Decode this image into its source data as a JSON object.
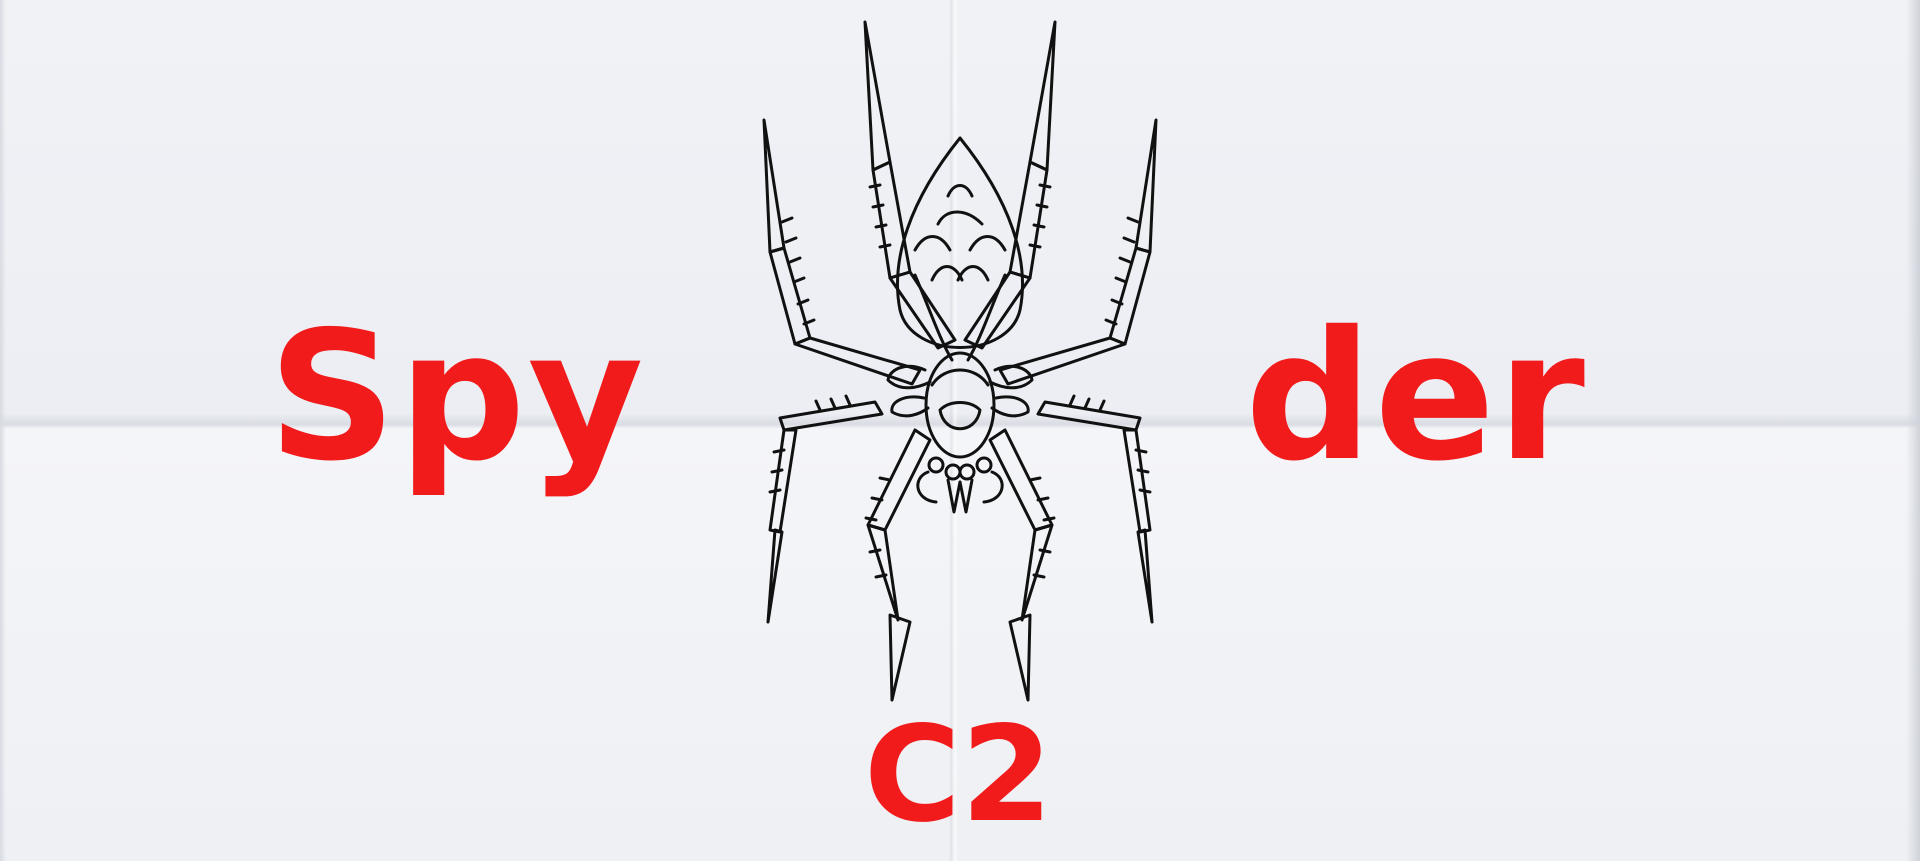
{
  "logo": {
    "word_left": "Spy",
    "word_right": "der",
    "word_bottom": "C2",
    "text_color": "#f21b1b",
    "emblem": "spider-icon"
  }
}
